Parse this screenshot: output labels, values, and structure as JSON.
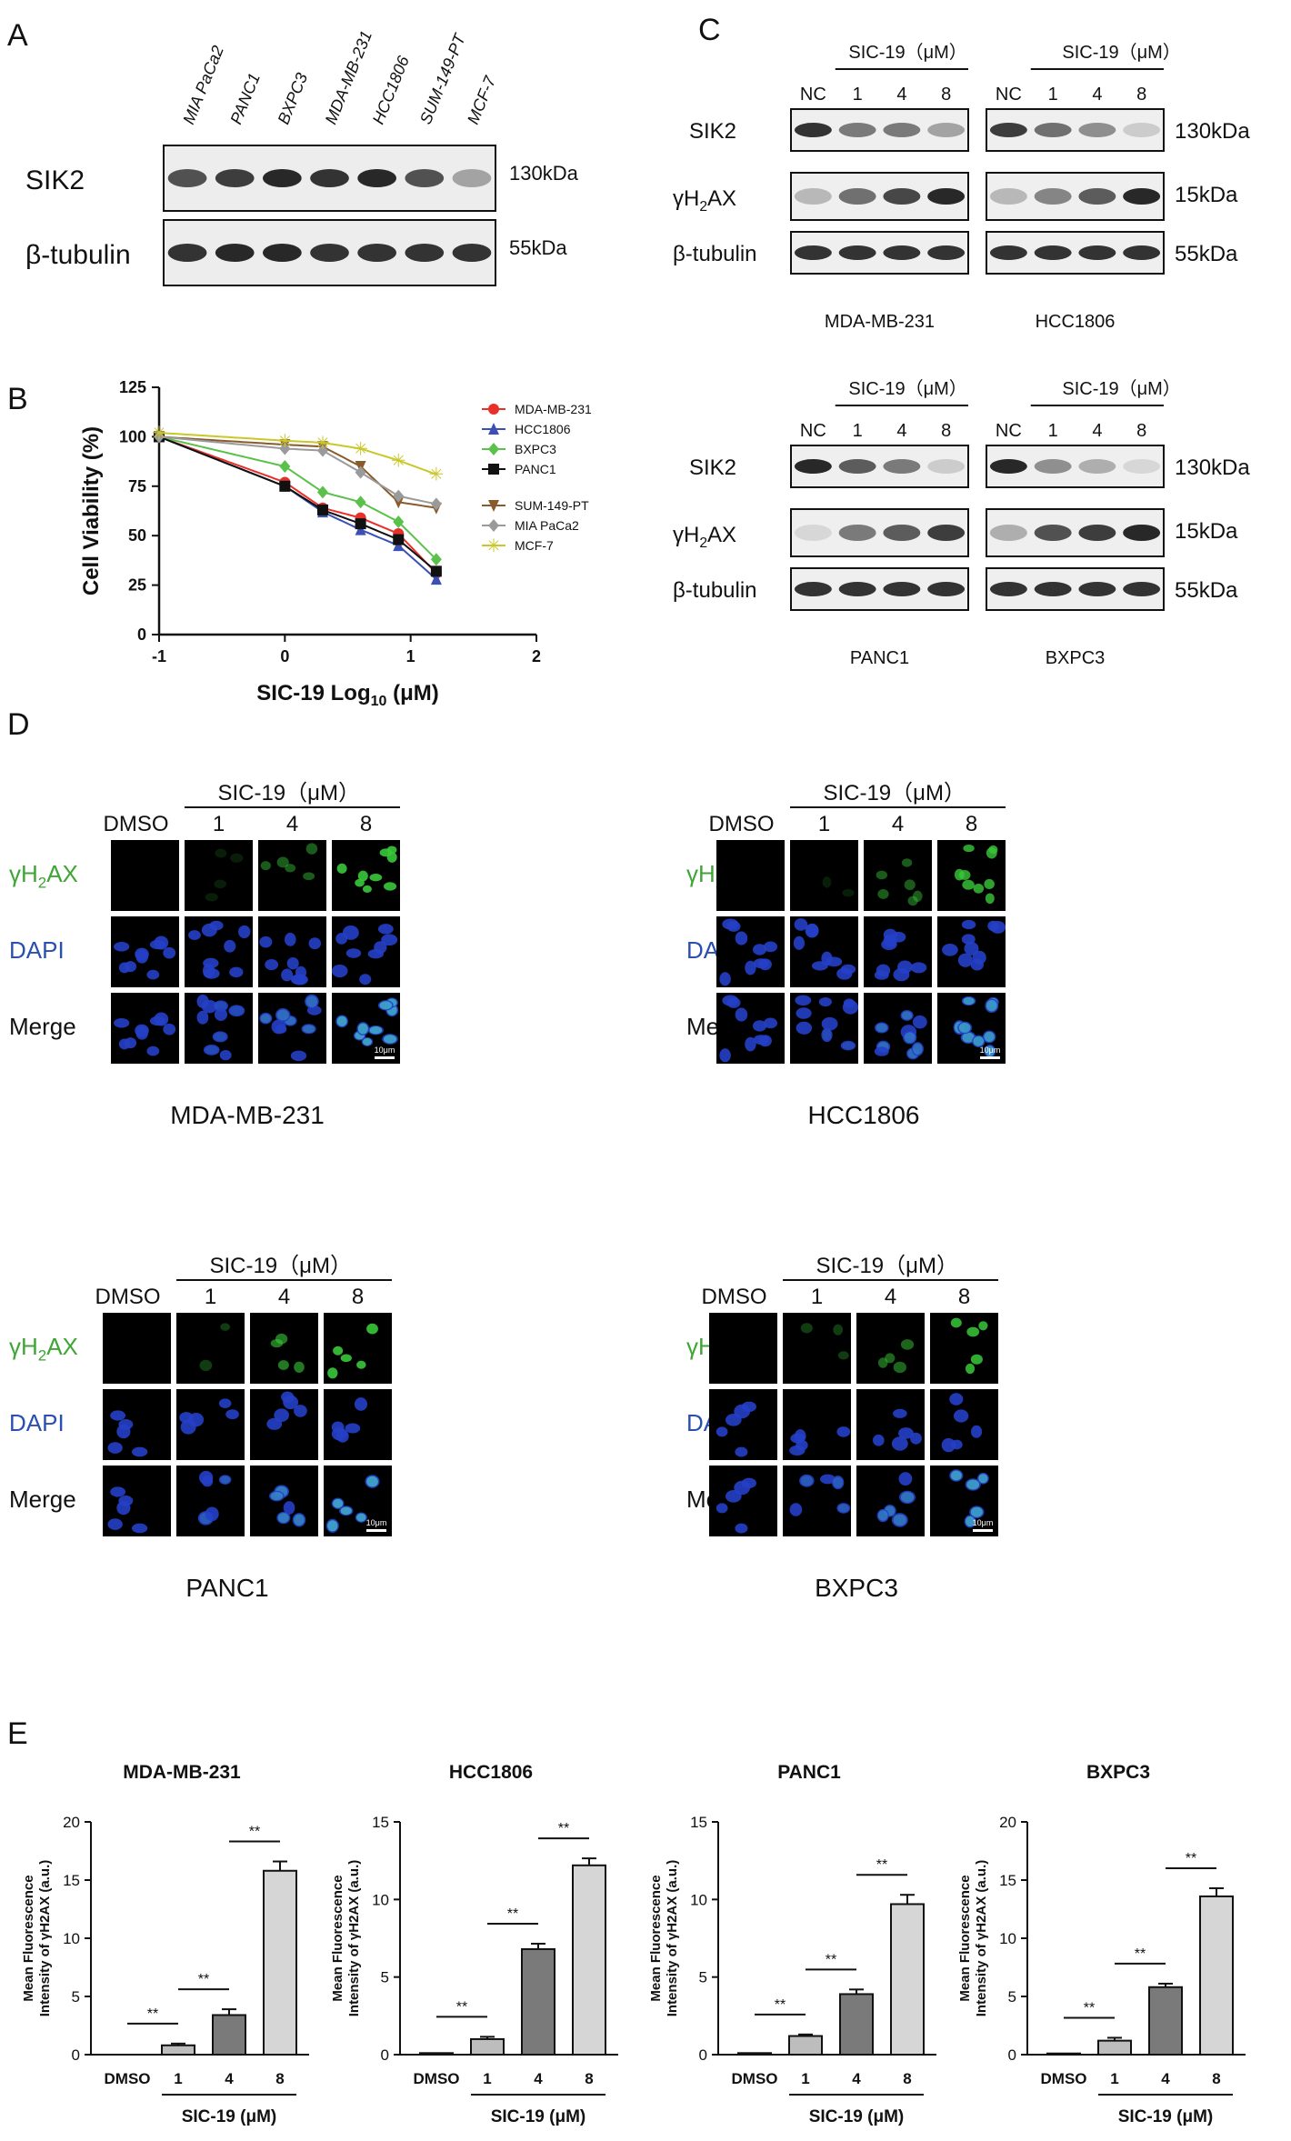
{
  "panels": {
    "A": "A",
    "B": "B",
    "C": "C",
    "D": "D",
    "E": "E"
  },
  "blot_A": {
    "lanes": [
      "MIA PaCa2",
      "PANC1",
      "BXPC3",
      "MDA-MB-231",
      "HCC1806",
      "SUM-149-PT",
      "MCF-7"
    ],
    "rows": [
      {
        "label": "SIK2",
        "kda": "130kDa",
        "intensities": [
          0.75,
          0.85,
          0.95,
          0.9,
          0.95,
          0.75,
          0.35
        ]
      },
      {
        "label": "β-tubulin",
        "kda": "55kDa",
        "intensities": [
          0.9,
          0.95,
          0.95,
          0.9,
          0.9,
          0.9,
          0.9
        ]
      }
    ]
  },
  "blot_C": {
    "treatment": "SIC-19（μM）",
    "lanes": [
      "NC",
      "1",
      "4",
      "8"
    ],
    "row_labels": [
      "SIK2",
      "γH2AX",
      "β-tubulin"
    ],
    "kda": [
      "130kDa",
      "15kDa",
      "55kDa"
    ],
    "cells": [
      {
        "name": "MDA-MB-231",
        "sik2": [
          0.9,
          0.55,
          0.55,
          0.35
        ],
        "h2ax": [
          0.25,
          0.6,
          0.8,
          0.95
        ]
      },
      {
        "name": "HCC1806",
        "sik2": [
          0.85,
          0.6,
          0.45,
          0.15
        ],
        "h2ax": [
          0.25,
          0.5,
          0.7,
          0.95
        ]
      },
      {
        "name": "PANC1",
        "sik2": [
          0.95,
          0.7,
          0.55,
          0.15
        ],
        "h2ax": [
          0.1,
          0.55,
          0.7,
          0.85
        ]
      },
      {
        "name": "BXPC3",
        "sik2": [
          0.95,
          0.45,
          0.3,
          0.1
        ],
        "h2ax": [
          0.3,
          0.75,
          0.85,
          0.95
        ]
      }
    ]
  },
  "chart_B": {
    "type": "line",
    "xlabel": "SIC-19 Log10 (μM)",
    "ylabel": "Cell Viability (%)",
    "xlim": [
      -1,
      2
    ],
    "ylim": [
      0,
      125
    ],
    "xticks": [
      "-1",
      "0",
      "1",
      "2"
    ],
    "yticks": [
      "0",
      "25",
      "50",
      "75",
      "100",
      "125"
    ],
    "x": [
      -1,
      0,
      0.301,
      0.602,
      0.903,
      1.204
    ],
    "series": [
      {
        "name": "MDA-MB-231",
        "color": "#e8302a",
        "marker": "circle",
        "values": [
          100,
          77,
          64,
          59,
          51,
          31
        ]
      },
      {
        "name": "HCC1806",
        "color": "#3b4fb5",
        "marker": "triangle",
        "values": [
          100,
          75,
          62,
          53,
          45,
          28
        ]
      },
      {
        "name": "BXPC3",
        "color": "#5ac14a",
        "marker": "diamond",
        "values": [
          100,
          85,
          72,
          67,
          57,
          38
        ]
      },
      {
        "name": "PANC1",
        "color": "#111111",
        "marker": "square",
        "values": [
          100,
          75,
          63,
          56,
          48,
          32
        ]
      },
      {
        "name": "SUM-149-PT",
        "color": "#8a5a2b",
        "marker": "triangle-down",
        "values": [
          100,
          96,
          95,
          85,
          67,
          64
        ]
      },
      {
        "name": "MIA PaCa2",
        "color": "#9a9a9a",
        "marker": "diamond",
        "values": [
          100,
          94,
          93,
          82,
          70,
          66
        ]
      },
      {
        "name": "MCF-7",
        "color": "#c9c82a",
        "marker": "star",
        "values": [
          102,
          98,
          97,
          94,
          88,
          81
        ]
      }
    ]
  },
  "panel_D": {
    "treatment": "SIC-19（μM）",
    "columns": [
      "DMSO",
      "1",
      "4",
      "8"
    ],
    "rows": [
      "γH2AX",
      "DAPI",
      "Merge"
    ],
    "scale": "10μm",
    "cells": [
      "MDA-MB-231",
      "HCC1806",
      "PANC1",
      "BXPC3"
    ],
    "gh2ax_levels": [
      [
        0.02,
        0.15,
        0.45,
        0.9
      ],
      [
        0.02,
        0.15,
        0.45,
        0.8
      ],
      [
        0.05,
        0.3,
        0.6,
        0.9
      ],
      [
        0.05,
        0.3,
        0.5,
        0.85
      ]
    ]
  },
  "chart_E": [
    {
      "type": "bar",
      "title": "MDA-MB-231",
      "ylabel": "Mean Fluorescence Intensity of γH2AX (a.u.)",
      "xlabel": "SIC-19 (μM)",
      "categories": [
        "DMSO",
        "1",
        "4",
        "8"
      ],
      "values": [
        0,
        0.8,
        3.4,
        15.8
      ],
      "errors": [
        0,
        0.15,
        0.5,
        0.8
      ],
      "ylim": [
        0,
        20
      ],
      "yticks": [
        "0",
        "5",
        "10",
        "15",
        "20"
      ],
      "sig": "**"
    },
    {
      "type": "bar",
      "title": "HCC1806",
      "ylabel": "Mean Fluorescence Intensity of γH2AX (a.u.)",
      "xlabel": "SIC-19 (μM)",
      "categories": [
        "DMSO",
        "1",
        "4",
        "8"
      ],
      "values": [
        0.1,
        1.0,
        6.8,
        12.2
      ],
      "errors": [
        0,
        0.15,
        0.35,
        0.45
      ],
      "ylim": [
        0,
        15
      ],
      "yticks": [
        "0",
        "5",
        "10",
        "15"
      ],
      "sig": "**"
    },
    {
      "type": "bar",
      "title": "PANC1",
      "ylabel": "Mean Fluorescence Intensity of γH2AX (a.u.)",
      "xlabel": "SIC-19 (μM)",
      "categories": [
        "DMSO",
        "1",
        "4",
        "8"
      ],
      "values": [
        0.1,
        1.2,
        3.9,
        9.7
      ],
      "errors": [
        0,
        0.1,
        0.3,
        0.6
      ],
      "ylim": [
        0,
        15
      ],
      "yticks": [
        "0",
        "5",
        "10",
        "15"
      ],
      "sig": "**"
    },
    {
      "type": "bar",
      "title": "BXPC3",
      "ylabel": "Mean Fluorescence Intensity of γH2AX (a.u.)",
      "xlabel": "SIC-19 (μM)",
      "categories": [
        "DMSO",
        "1",
        "4",
        "8"
      ],
      "values": [
        0.1,
        1.2,
        5.8,
        13.6
      ],
      "errors": [
        0,
        0.25,
        0.3,
        0.7
      ],
      "ylim": [
        0,
        20
      ],
      "yticks": [
        "0",
        "5",
        "10",
        "15",
        "20"
      ],
      "sig": "**"
    }
  ]
}
